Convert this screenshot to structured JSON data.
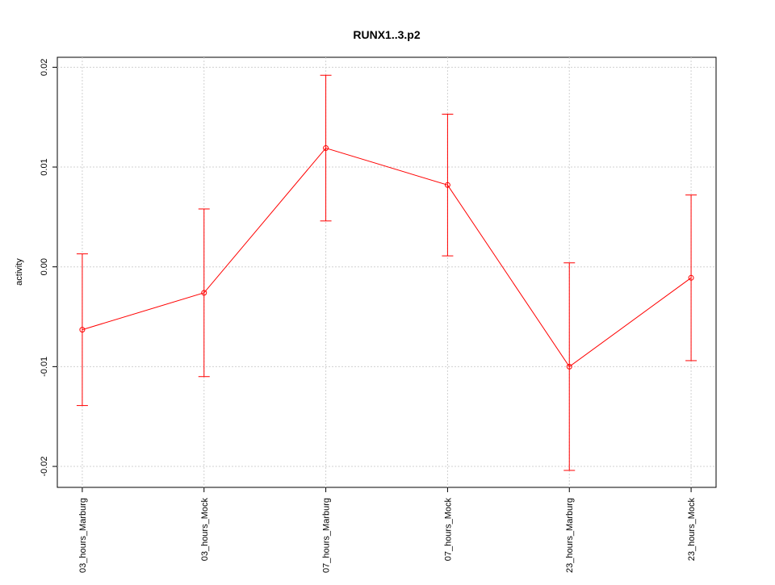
{
  "chart_data": {
    "type": "line",
    "title": "RUNX1..3.p2",
    "y_label": "activity",
    "categories": [
      "03_hours_Marburg",
      "03_hours_Mock",
      "07_hours_Marburg",
      "07_hours_Mock",
      "23_hours_Marburg",
      "23_hours_Mock"
    ],
    "series": [
      {
        "color": "#ff0000",
        "values": [
          -0.0063,
          -0.0026,
          0.0119,
          0.0082,
          -0.01,
          -0.0011
        ],
        "errors": [
          0.0076,
          0.0084,
          0.0073,
          0.0071,
          0.0104,
          0.0083
        ]
      }
    ],
    "ylim": [
      -0.0221,
      0.021
    ],
    "yticks": [
      -0.02,
      -0.01,
      {
        "value": 0,
        "label": "0.00"
      },
      0.01,
      0.02
    ],
    "grid": true
  }
}
